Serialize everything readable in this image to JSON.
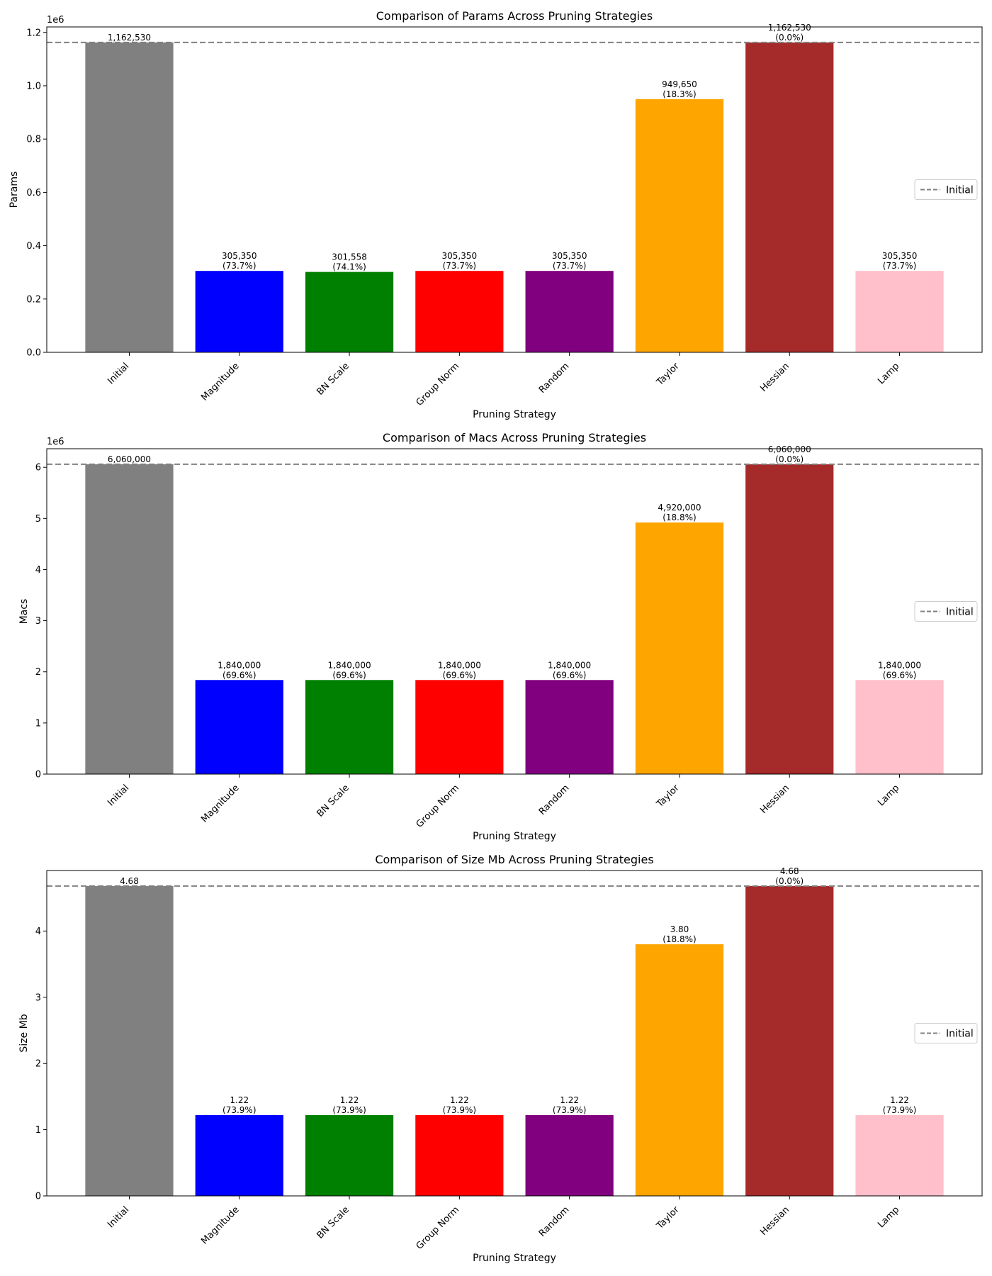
{
  "chart_data": [
    {
      "type": "bar",
      "title": "Comparison of Params Across Pruning Strategies",
      "xlabel": "Pruning Strategy",
      "ylabel": "Params",
      "scale_label": "1e6",
      "categories": [
        "Initial",
        "Magnitude",
        "BN Scale",
        "Group Norm",
        "Random",
        "Taylor",
        "Hessian",
        "Lamp"
      ],
      "values": [
        1162530,
        305350,
        301558,
        305350,
        305350,
        949650,
        1162530,
        305350
      ],
      "value_labels": [
        "1,162,530",
        "305,350",
        "301,558",
        "305,350",
        "305,350",
        "949,650",
        "1,162,530",
        "305,350"
      ],
      "reduction_labels": [
        "",
        "(73.7%)",
        "(74.1%)",
        "(73.7%)",
        "(73.7%)",
        "(18.3%)",
        "(0.0%)",
        "(73.7%)"
      ],
      "baseline": 1162530,
      "legend": "Initial",
      "legend_position": "center-right",
      "yticks": [
        0,
        0.2,
        0.4,
        0.6,
        0.8,
        1.0,
        1.2
      ],
      "ytick_labels": [
        "0.0",
        "0.2",
        "0.4",
        "0.6",
        "0.8",
        "1.0",
        "1.2"
      ],
      "tick_scale": 1000000,
      "ylim": [
        0,
        1220656
      ],
      "grid": false
    },
    {
      "type": "bar",
      "title": "Comparison of Macs Across Pruning Strategies",
      "xlabel": "Pruning Strategy",
      "ylabel": "Macs",
      "scale_label": "1e6",
      "categories": [
        "Initial",
        "Magnitude",
        "BN Scale",
        "Group Norm",
        "Random",
        "Taylor",
        "Hessian",
        "Lamp"
      ],
      "values": [
        6060000,
        1840000,
        1840000,
        1840000,
        1840000,
        4920000,
        6060000,
        1840000
      ],
      "value_labels": [
        "6,060,000",
        "1,840,000",
        "1,840,000",
        "1,840,000",
        "1,840,000",
        "4,920,000",
        "6,060,000",
        "1,840,000"
      ],
      "reduction_labels": [
        "",
        "(69.6%)",
        "(69.6%)",
        "(69.6%)",
        "(69.6%)",
        "(18.8%)",
        "(0.0%)",
        "(69.6%)"
      ],
      "baseline": 6060000,
      "legend": "Initial",
      "legend_position": "center-right",
      "yticks": [
        0,
        1,
        2,
        3,
        4,
        5,
        6
      ],
      "ytick_labels": [
        "0",
        "1",
        "2",
        "3",
        "4",
        "5",
        "6"
      ],
      "tick_scale": 1000000,
      "ylim": [
        0,
        6363000
      ],
      "grid": false
    },
    {
      "type": "bar",
      "title": "Comparison of Size Mb Across Pruning Strategies",
      "xlabel": "Pruning Strategy",
      "ylabel": "Size Mb",
      "scale_label": "",
      "categories": [
        "Initial",
        "Magnitude",
        "BN Scale",
        "Group Norm",
        "Random",
        "Taylor",
        "Hessian",
        "Lamp"
      ],
      "values": [
        4.68,
        1.22,
        1.22,
        1.22,
        1.22,
        3.8,
        4.68,
        1.22
      ],
      "value_labels": [
        "4.68",
        "1.22",
        "1.22",
        "1.22",
        "1.22",
        "3.80",
        "4.68",
        "1.22"
      ],
      "reduction_labels": [
        "",
        "(73.9%)",
        "(73.9%)",
        "(73.9%)",
        "(73.9%)",
        "(18.8%)",
        "(0.0%)",
        "(73.9%)"
      ],
      "baseline": 4.68,
      "legend": "Initial",
      "legend_position": "center-right",
      "yticks": [
        0,
        1,
        2,
        3,
        4
      ],
      "ytick_labels": [
        "0",
        "1",
        "2",
        "3",
        "4"
      ],
      "tick_scale": 1,
      "ylim": [
        0,
        4.914
      ],
      "grid": false
    }
  ],
  "colors": {
    "bars": [
      "#808080",
      "#0000ff",
      "#008000",
      "#ff0000",
      "#800080",
      "#ffa500",
      "#a52a2a",
      "#ffc0cb"
    ],
    "baseline": "#808080",
    "axis": "#000000"
  }
}
